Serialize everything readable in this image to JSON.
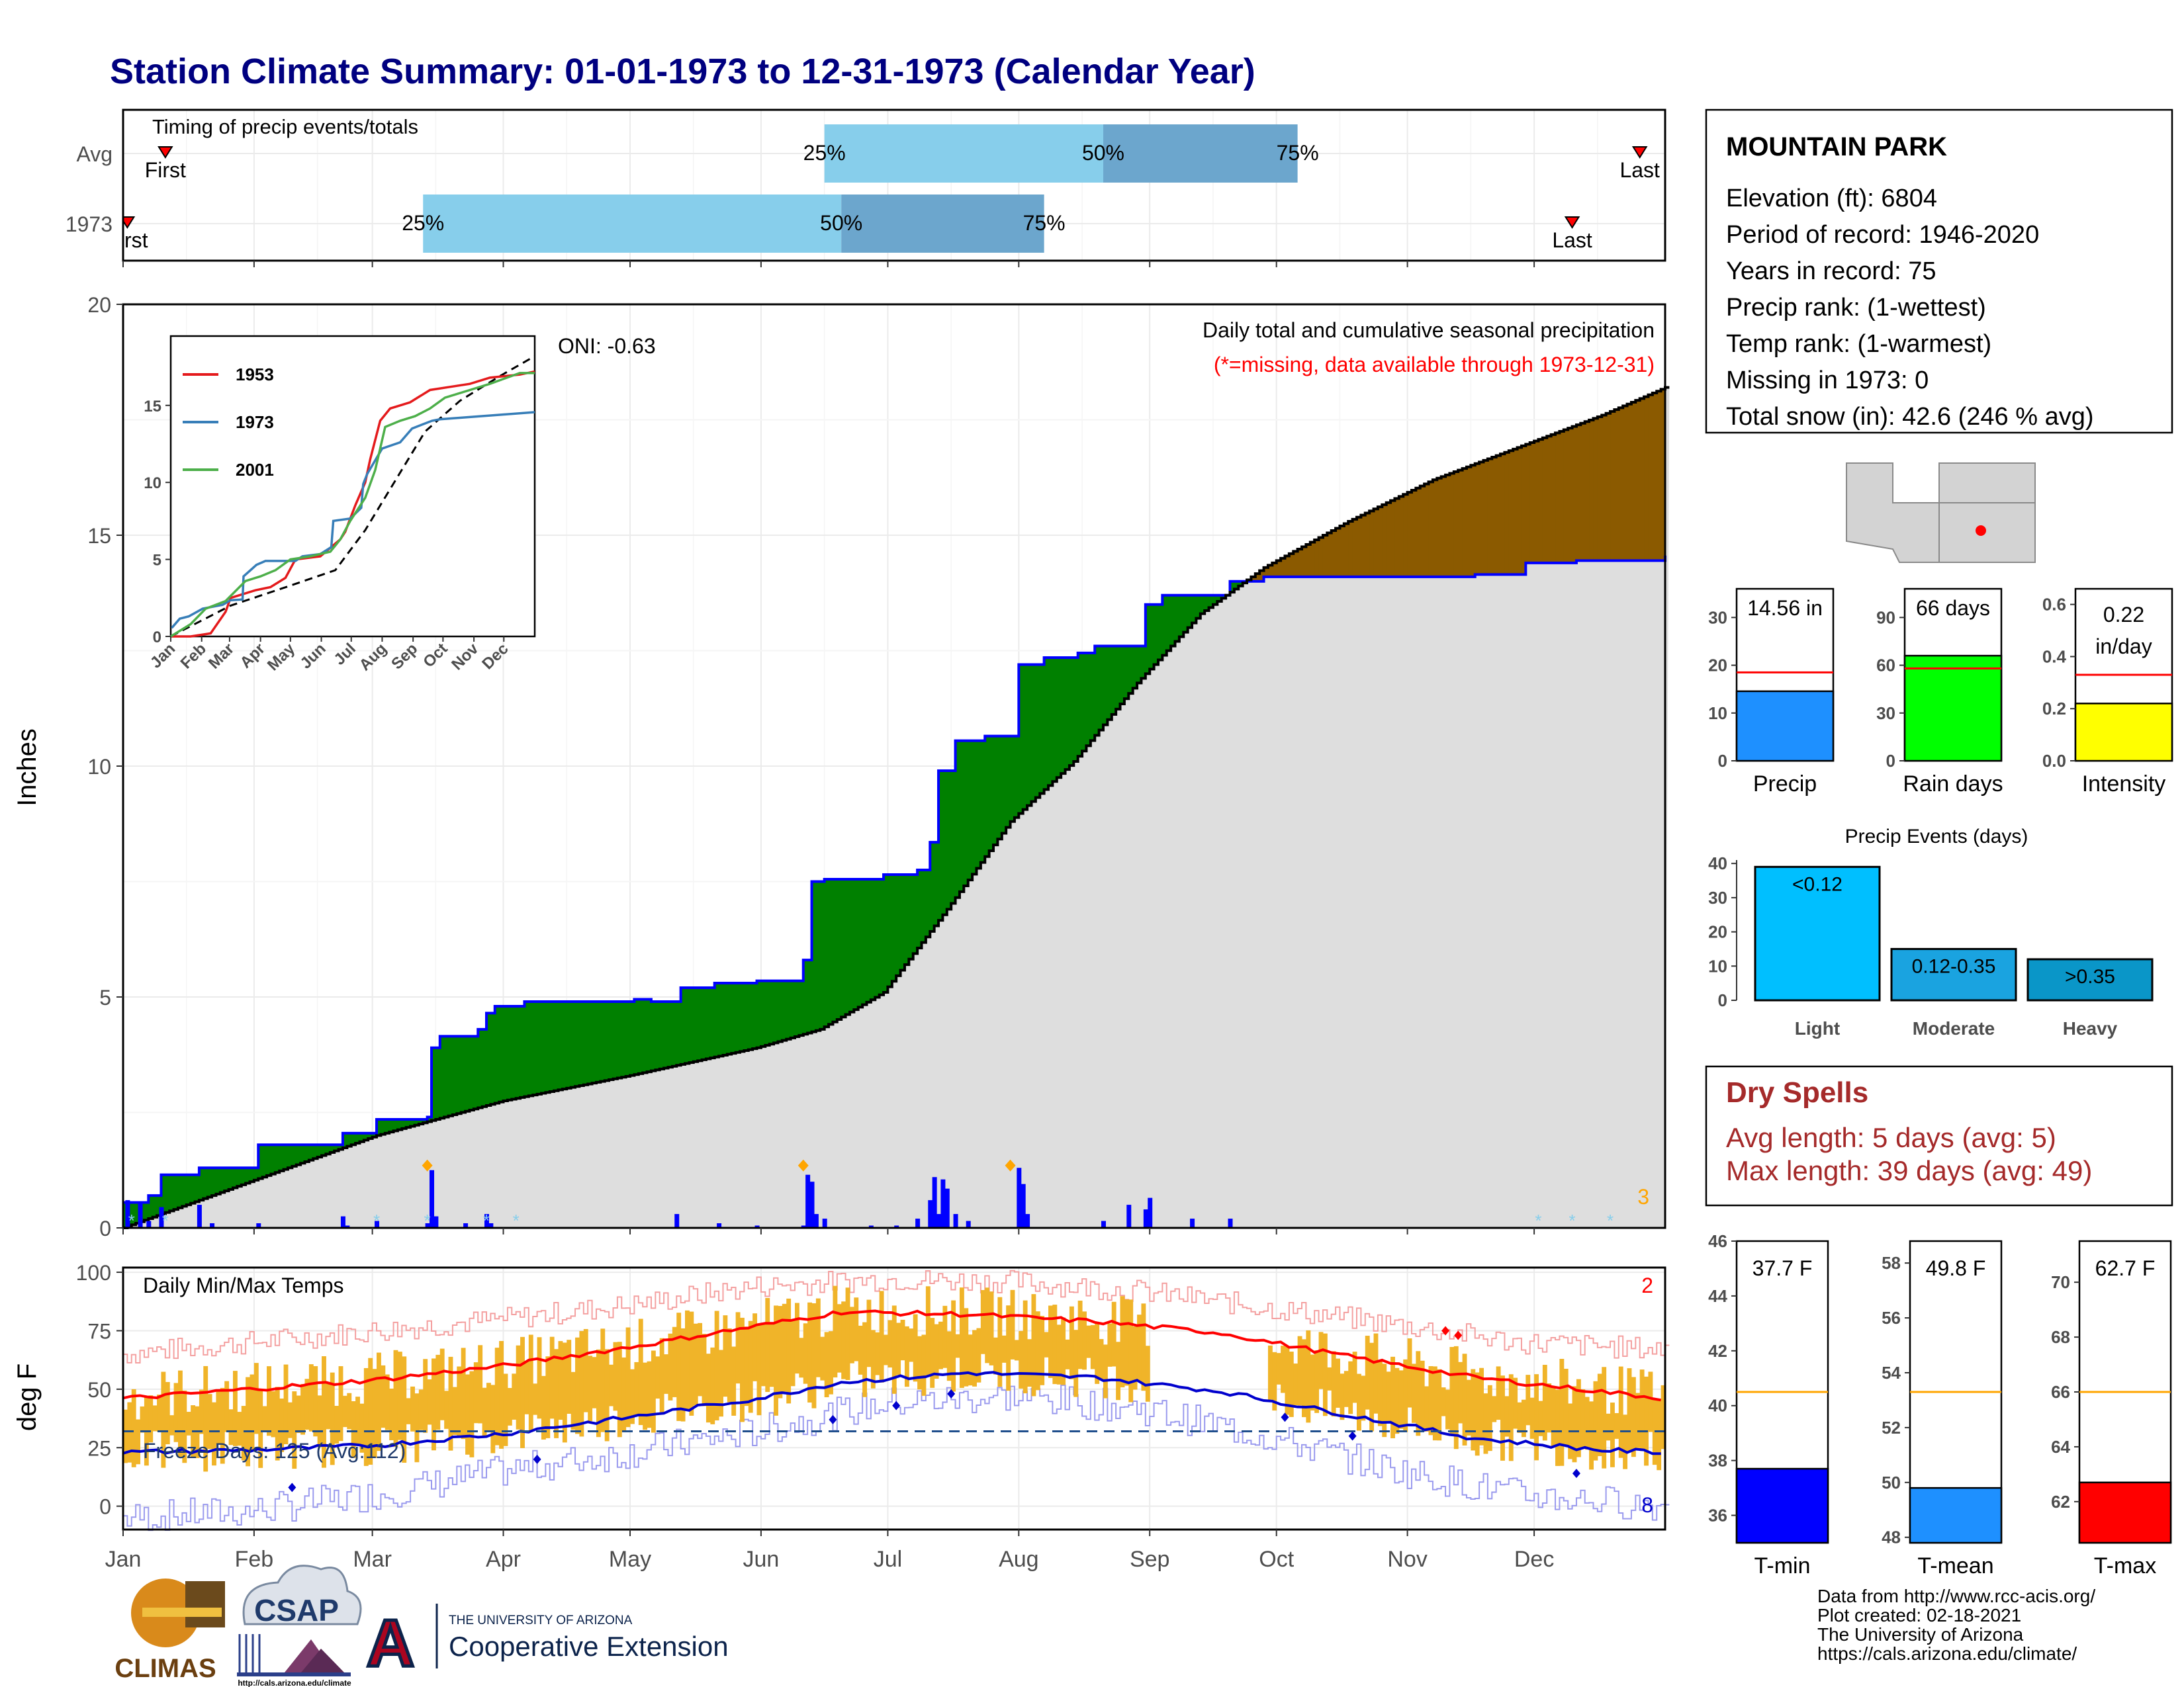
{
  "title": "Station Climate Summary: 01-01-1973 to 12-31-1973 (Calendar Year)",
  "months": [
    "Jan",
    "Feb",
    "Mar",
    "Apr",
    "May",
    "Jun",
    "Jul",
    "Aug",
    "Sep",
    "Oct",
    "Nov",
    "Dec"
  ],
  "timing": {
    "label": "Timing of precip events/totals",
    "rows": [
      {
        "name": "Avg",
        "first_label": "First",
        "last_label": "Last",
        "first_doy": 10,
        "last_doy": 359,
        "p25_doy": 166,
        "p50_doy": 232,
        "p75_doy": 278,
        "p25": "25%",
        "p50": "50%",
        "p75": "75%"
      },
      {
        "name": "1973",
        "first_label": "First",
        "last_label": "Last",
        "first_doy": 1,
        "last_doy": 343,
        "p25_doy": 71,
        "p50_doy": 170,
        "p75_doy": 218,
        "p25": "25%",
        "p50": "50%",
        "p75": "75%"
      }
    ]
  },
  "precip_chart": {
    "ylabel": "Inches",
    "ylim": [
      0,
      20
    ],
    "yticks": [
      "0",
      "5",
      "10",
      "15",
      "20"
    ],
    "oni": "ONI: -0.63",
    "caption1": "Daily total and cumulative seasonal precipitation",
    "caption2": "(*=missing, data available through 1973-12-31)",
    "corner_count": "3",
    "cumulative_1973": [
      [
        1,
        0.55
      ],
      [
        6,
        0.7
      ],
      [
        9,
        1.15
      ],
      [
        18,
        1.3
      ],
      [
        32,
        1.8
      ],
      [
        52,
        2.05
      ],
      [
        60,
        2.35
      ],
      [
        72,
        2.4
      ],
      [
        73,
        3.9
      ],
      [
        75,
        4.15
      ],
      [
        84,
        4.3
      ],
      [
        86,
        4.65
      ],
      [
        88,
        4.8
      ],
      [
        95,
        4.9
      ],
      [
        121,
        4.95
      ],
      [
        125,
        4.9
      ],
      [
        132,
        5.2
      ],
      [
        140,
        5.3
      ],
      [
        150,
        5.35
      ],
      [
        161,
        5.8
      ],
      [
        163,
        7.5
      ],
      [
        166,
        7.55
      ],
      [
        180,
        7.65
      ],
      [
        188,
        7.75
      ],
      [
        191,
        8.35
      ],
      [
        193,
        9.9
      ],
      [
        197,
        10.55
      ],
      [
        204,
        10.65
      ],
      [
        212,
        12.2
      ],
      [
        218,
        12.35
      ],
      [
        226,
        12.45
      ],
      [
        230,
        12.6
      ],
      [
        240,
        12.6
      ],
      [
        242,
        13.5
      ],
      [
        246,
        13.7
      ],
      [
        256,
        13.7
      ],
      [
        262,
        14.0
      ],
      [
        270,
        14.1
      ],
      [
        320,
        14.15
      ],
      [
        332,
        14.4
      ],
      [
        344,
        14.45
      ],
      [
        365,
        14.56
      ]
    ],
    "cumulative_avg": [
      [
        0,
        0
      ],
      [
        30,
        1.0
      ],
      [
        60,
        2.0
      ],
      [
        90,
        2.75
      ],
      [
        120,
        3.3
      ],
      [
        150,
        3.9
      ],
      [
        165,
        4.3
      ],
      [
        180,
        5.1
      ],
      [
        195,
        6.9
      ],
      [
        210,
        8.8
      ],
      [
        225,
        10.1
      ],
      [
        240,
        11.8
      ],
      [
        255,
        13.3
      ],
      [
        270,
        14.3
      ],
      [
        290,
        15.3
      ],
      [
        310,
        16.2
      ],
      [
        330,
        16.9
      ],
      [
        350,
        17.6
      ],
      [
        365,
        18.2
      ]
    ],
    "daily_1973": [
      [
        1,
        0.6
      ],
      [
        4,
        0.55
      ],
      [
        6,
        0.15
      ],
      [
        9,
        0.45
      ],
      [
        18,
        0.5
      ],
      [
        21,
        0.1
      ],
      [
        32,
        0.1
      ],
      [
        52,
        0.25
      ],
      [
        53,
        0.05
      ],
      [
        60,
        0.15
      ],
      [
        72,
        0.1
      ],
      [
        73,
        1.25
      ],
      [
        74,
        0.25
      ],
      [
        81,
        0.1
      ],
      [
        86,
        0.3
      ],
      [
        87,
        0.1
      ],
      [
        131,
        0.3
      ],
      [
        141,
        0.1
      ],
      [
        150,
        0.05
      ],
      [
        161,
        0.05
      ],
      [
        162,
        1.15
      ],
      [
        163,
        1.0
      ],
      [
        164,
        0.3
      ],
      [
        166,
        0.2
      ],
      [
        177,
        0.05
      ],
      [
        183,
        0.05
      ],
      [
        188,
        0.2
      ],
      [
        191,
        0.6
      ],
      [
        192,
        1.1
      ],
      [
        193,
        0.3
      ],
      [
        194,
        1.05
      ],
      [
        195,
        0.85
      ],
      [
        197,
        0.3
      ],
      [
        200,
        0.15
      ],
      [
        212,
        1.3
      ],
      [
        213,
        0.95
      ],
      [
        214,
        0.3
      ],
      [
        232,
        0.15
      ],
      [
        238,
        0.5
      ],
      [
        242,
        0.4
      ],
      [
        243,
        0.65
      ],
      [
        253,
        0.2
      ],
      [
        262,
        0.2
      ]
    ],
    "max_markers": [
      [
        72,
        1.35
      ],
      [
        161,
        1.35
      ],
      [
        210,
        1.35
      ]
    ]
  },
  "inset_chart": {
    "yticks": [
      "0",
      "5",
      "10",
      "15"
    ],
    "series": [
      {
        "name": "1953",
        "color": "#e41a1c",
        "values": [
          [
            0,
            0
          ],
          [
            20,
            0
          ],
          [
            40,
            0.2
          ],
          [
            55,
            1.6
          ],
          [
            60,
            2.5
          ],
          [
            85,
            3.0
          ],
          [
            100,
            3.2
          ],
          [
            115,
            3.8
          ],
          [
            125,
            5.0
          ],
          [
            150,
            5.2
          ],
          [
            170,
            6.3
          ],
          [
            175,
            6.8
          ],
          [
            185,
            8.5
          ],
          [
            195,
            10.0
          ],
          [
            200,
            11.5
          ],
          [
            210,
            14.0
          ],
          [
            220,
            14.8
          ],
          [
            230,
            15.0
          ],
          [
            240,
            15.2
          ],
          [
            250,
            15.6
          ],
          [
            260,
            16.0
          ],
          [
            280,
            16.2
          ],
          [
            300,
            16.4
          ],
          [
            320,
            16.8
          ],
          [
            350,
            17.0
          ],
          [
            365,
            17.2
          ]
        ]
      },
      {
        "name": "1973",
        "color": "#377eb8",
        "values": [
          [
            1,
            0.55
          ],
          [
            9,
            1.15
          ],
          [
            18,
            1.3
          ],
          [
            32,
            1.8
          ],
          [
            52,
            2.05
          ],
          [
            60,
            2.35
          ],
          [
            72,
            2.4
          ],
          [
            73,
            3.9
          ],
          [
            86,
            4.65
          ],
          [
            95,
            4.9
          ],
          [
            125,
            4.9
          ],
          [
            132,
            5.2
          ],
          [
            150,
            5.35
          ],
          [
            161,
            5.8
          ],
          [
            163,
            7.5
          ],
          [
            180,
            7.65
          ],
          [
            191,
            8.35
          ],
          [
            193,
            9.9
          ],
          [
            197,
            10.55
          ],
          [
            212,
            12.2
          ],
          [
            230,
            12.6
          ],
          [
            242,
            13.5
          ],
          [
            262,
            14.0
          ],
          [
            270,
            14.1
          ],
          [
            332,
            14.4
          ],
          [
            365,
            14.56
          ]
        ]
      },
      {
        "name": "2001",
        "color": "#4daf4a",
        "values": [
          [
            0,
            0
          ],
          [
            20,
            0.8
          ],
          [
            35,
            1.8
          ],
          [
            55,
            2.3
          ],
          [
            75,
            3.6
          ],
          [
            90,
            3.9
          ],
          [
            105,
            4.3
          ],
          [
            120,
            5.0
          ],
          [
            140,
            5.2
          ],
          [
            160,
            5.5
          ],
          [
            170,
            6.3
          ],
          [
            180,
            7.5
          ],
          [
            195,
            9.0
          ],
          [
            205,
            10.8
          ],
          [
            215,
            13.6
          ],
          [
            230,
            14.0
          ],
          [
            245,
            14.3
          ],
          [
            260,
            14.8
          ],
          [
            275,
            15.5
          ],
          [
            300,
            16.0
          ],
          [
            320,
            16.4
          ],
          [
            350,
            17.1
          ],
          [
            365,
            17.1
          ]
        ]
      }
    ],
    "average": [
      [
        0,
        0
      ],
      [
        60,
        2.0
      ],
      [
        120,
        3.3
      ],
      [
        165,
        4.3
      ],
      [
        195,
        6.9
      ],
      [
        225,
        10.1
      ],
      [
        255,
        13.3
      ],
      [
        290,
        15.3
      ],
      [
        330,
        16.9
      ],
      [
        365,
        18.2
      ]
    ]
  },
  "temp_chart": {
    "ylabel": "deg F",
    "ylim": [
      -10,
      102
    ],
    "yticks": [
      "0",
      "25",
      "50",
      "75",
      "100"
    ],
    "label": "Daily Min/Max Temps",
    "freeze": "Freeze Days: 125 (Avg:112)",
    "freeze_line": 32,
    "top_count": "2",
    "bottom_count": "8",
    "avg_max": [
      [
        0,
        46
      ],
      [
        30,
        50
      ],
      [
        60,
        54
      ],
      [
        90,
        60
      ],
      [
        120,
        68
      ],
      [
        150,
        77
      ],
      [
        170,
        83
      ],
      [
        200,
        82
      ],
      [
        230,
        79
      ],
      [
        260,
        74
      ],
      [
        290,
        64
      ],
      [
        320,
        55
      ],
      [
        350,
        49
      ],
      [
        365,
        46
      ]
    ],
    "avg_min": [
      [
        0,
        23
      ],
      [
        30,
        24
      ],
      [
        60,
        26
      ],
      [
        90,
        31
      ],
      [
        120,
        38
      ],
      [
        150,
        46
      ],
      [
        170,
        53
      ],
      [
        200,
        57
      ],
      [
        230,
        55
      ],
      [
        260,
        49
      ],
      [
        290,
        39
      ],
      [
        320,
        29
      ],
      [
        350,
        24
      ],
      [
        365,
        23
      ]
    ],
    "rec_max": [
      [
        0,
        65
      ],
      [
        30,
        70
      ],
      [
        60,
        75
      ],
      [
        90,
        80
      ],
      [
        120,
        86
      ],
      [
        150,
        94
      ],
      [
        180,
        97
      ],
      [
        210,
        96
      ],
      [
        240,
        92
      ],
      [
        270,
        85
      ],
      [
        300,
        78
      ],
      [
        330,
        70
      ],
      [
        365,
        67
      ]
    ],
    "rec_min": [
      [
        0,
        -5
      ],
      [
        30,
        -2
      ],
      [
        60,
        5
      ],
      [
        90,
        15
      ],
      [
        120,
        23
      ],
      [
        150,
        32
      ],
      [
        180,
        44
      ],
      [
        210,
        47
      ],
      [
        240,
        42
      ],
      [
        270,
        30
      ],
      [
        300,
        16
      ],
      [
        330,
        5
      ],
      [
        365,
        0
      ]
    ],
    "gap_days": [
      [
        243,
        270
      ]
    ]
  },
  "station": {
    "name": "MOUNTAIN PARK",
    "lines": [
      "Elevation (ft): 6804",
      "Period of record: 1946-2020",
      "Years in record: 75",
      "Precip rank:  (1-wettest)",
      "Temp rank:  (1-warmest)",
      "Missing in 1973: 0",
      "Total snow (in): 42.6 (246 % avg)"
    ]
  },
  "summary_bars": [
    {
      "label": "Precip",
      "value_text": "14.56 in",
      "value": 14.56,
      "avg": 18.5,
      "ymax": 36,
      "yticks": [
        "0",
        "10",
        "20",
        "30"
      ],
      "color": "#1e90ff"
    },
    {
      "label": "Rain days",
      "value_text": "66 days",
      "value": 66,
      "avg": 58,
      "ymax": 108,
      "yticks": [
        "0",
        "30",
        "60",
        "90"
      ],
      "color": "#00ff00"
    },
    {
      "label": "Intensity",
      "value_text": "0.22",
      "value_text2": "in/day",
      "value": 0.22,
      "avg": 0.33,
      "ymax": 0.66,
      "yticks": [
        "0.0",
        "0.2",
        "0.4",
        "0.6"
      ],
      "color": "#ffff00"
    }
  ],
  "events": {
    "title": "Precip Events (days)",
    "ymax": 41,
    "yticks": [
      "0",
      "10",
      "20",
      "30",
      "40"
    ],
    "bars": [
      {
        "label": "Light",
        "range": "<0.12",
        "value": 39,
        "color": "#00bfff"
      },
      {
        "label": "Moderate",
        "range": "0.12-0.35",
        "value": 15,
        "color": "#1aa3e0"
      },
      {
        "label": "Heavy",
        "range": ">0.35",
        "value": 12,
        "color": "#0a96c8"
      }
    ]
  },
  "dry_spells": {
    "title": "Dry Spells",
    "avg": "Avg length: 5 days (avg: 5)",
    "max": "Max length: 39 days (avg: 49)"
  },
  "temp_bars": [
    {
      "label": "T-min",
      "value_text": "37.7 F",
      "value": 37.7,
      "avg": 40.5,
      "ymin": 35,
      "ymax": 46,
      "ticks": [
        36,
        38,
        40,
        42,
        44,
        46
      ],
      "color": "#0000ff"
    },
    {
      "label": "T-mean",
      "value_text": "49.8 F",
      "value": 49.8,
      "avg": 53.3,
      "ymin": 47.8,
      "ymax": 58.8,
      "ticks": [
        48,
        50,
        52,
        54,
        56,
        58
      ],
      "color": "#1e90ff"
    },
    {
      "label": "T-max",
      "value_text": "62.7 F",
      "value": 62.7,
      "avg": 66,
      "ymin": 60.5,
      "ymax": 71.5,
      "ticks": [
        62,
        64,
        66,
        68,
        70
      ],
      "color": "#ff0000"
    }
  ],
  "footer": {
    "lines": [
      "Data from http://www.rcc-acis.org/",
      "Plot created: 02-18-2021",
      "The University of Arizona",
      "https://cals.arizona.edu/climate/"
    ],
    "logo_climas": "CLIMAS",
    "logo_csap": "CSAP",
    "csap_url": "http://cals.arizona.edu/climate",
    "ua_small": "THE UNIVERSITY OF ARIZONA",
    "ua_big": "Cooperative Extension",
    "ua_letter": "A"
  }
}
